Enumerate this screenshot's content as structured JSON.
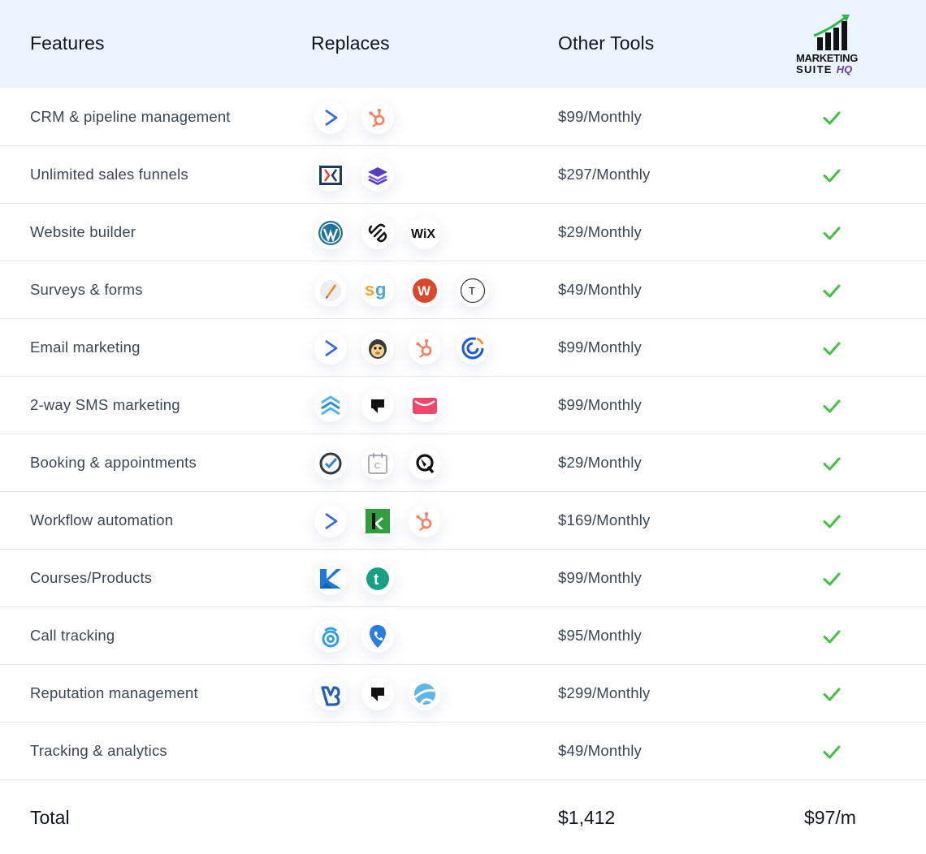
{
  "header": {
    "features": "Features",
    "replaces": "Replaces",
    "other_tools": "Other Tools",
    "logo_line1": "MARKETING",
    "logo_line2": "SUITE",
    "logo_hq": "HQ"
  },
  "colors": {
    "header_bg": "#ebf4ff",
    "check": "#3ec43e",
    "logo_arrow": "#2db84a",
    "logo_hq": "#6b3fa0"
  },
  "rows": [
    {
      "feature": "CRM & pipeline management",
      "price": "$99/Monthly",
      "icons": [
        "activecampaign-icon",
        "hubspot-icon"
      ]
    },
    {
      "feature": "Unlimited sales funnels",
      "price": "$297/Monthly",
      "icons": [
        "clickfunnels-icon",
        "leadpages-icon"
      ]
    },
    {
      "feature": "Website builder",
      "price": "$29/Monthly",
      "icons": [
        "wordpress-icon",
        "squarespace-icon",
        "wix-icon"
      ]
    },
    {
      "feature": "Surveys & forms",
      "price": "$49/Monthly",
      "icons": [
        "jotform-icon",
        "surveygizmo-icon",
        "wufoo-icon",
        "typeform-icon"
      ]
    },
    {
      "feature": "Email marketing",
      "price": "$99/Monthly",
      "icons": [
        "activecampaign-icon",
        "mailchimp-icon",
        "hubspot-icon",
        "constant-contact-icon"
      ]
    },
    {
      "feature": "2-way SMS marketing",
      "price": "$99/Monthly",
      "icons": [
        "eztexting-icon",
        "podium-icon",
        "textmagic-icon"
      ]
    },
    {
      "feature": "Booking & appointments",
      "price": "$29/Monthly",
      "icons": [
        "acuity-icon",
        "calendly-icon",
        "schedule-icon"
      ]
    },
    {
      "feature": "Workflow automation",
      "price": "$169/Monthly",
      "icons": [
        "activecampaign-icon",
        "keap-icon",
        "hubspot-icon"
      ]
    },
    {
      "feature": "Courses/Products",
      "price": "$99/Monthly",
      "icons": [
        "kajabi-icon",
        "teachable-icon"
      ]
    },
    {
      "feature": "Call tracking",
      "price": "$95/Monthly",
      "icons": [
        "callrail-icon",
        "calltrackingmetrics-icon"
      ]
    },
    {
      "feature": "Reputation management",
      "price": "$299/Monthly",
      "icons": [
        "birdeye-icon",
        "podium-icon",
        "reputation-icon"
      ]
    },
    {
      "feature": "Tracking & analytics",
      "price": "$49/Monthly",
      "icons": []
    }
  ],
  "total": {
    "label": "Total",
    "other": "$1,412",
    "ours": "$97/m"
  }
}
